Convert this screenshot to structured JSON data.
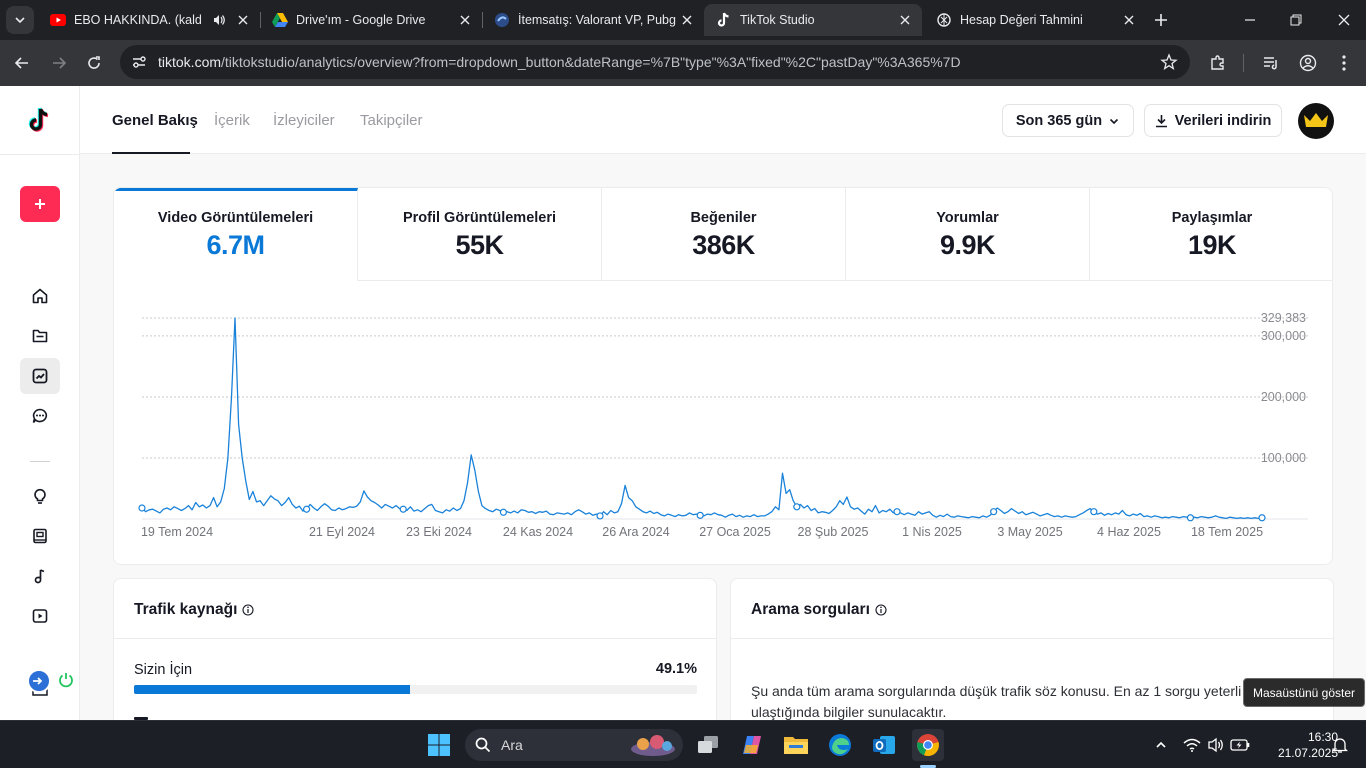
{
  "browser": {
    "tabs": [
      {
        "title": "EBO HAKKINDA. (kaldırıl",
        "favicon": "youtube-icon",
        "audio": true
      },
      {
        "title": "Drive'ım - Google Drive",
        "favicon": "google-drive-icon"
      },
      {
        "title": "İtemsatış: Valorant VP, Pubg",
        "favicon": "itemsatis-icon"
      },
      {
        "title": "TikTok Studio",
        "favicon": "tiktok-icon",
        "active": true
      },
      {
        "title": "Hesap Değeri Tahmini",
        "favicon": "chatgpt-icon"
      }
    ],
    "url_host": "tiktok.com",
    "url_path": "/tiktokstudio/analytics/overview?from=dropdown_button&dateRange=%7B\"type\"%3A\"fixed\"%2C\"pastDay\"%3A365%7D"
  },
  "nav": {
    "tabs": [
      "Genel Bakış",
      "İçerik",
      "İzleyiciler",
      "Takipçiler"
    ],
    "active_tab": "Genel Bakış",
    "range_label": "Son 365 gün",
    "download_label": "Verileri indirin"
  },
  "metrics": [
    {
      "label": "Video Görüntülemeleri",
      "value": "6.7M",
      "active": true
    },
    {
      "label": "Profil Görüntülemeleri",
      "value": "55K"
    },
    {
      "label": "Beğeniler",
      "value": "386K"
    },
    {
      "label": "Yorumlar",
      "value": "9.9K"
    },
    {
      "label": "Paylaşımlar",
      "value": "19K"
    }
  ],
  "colors": {
    "accent": "#0a78d6",
    "brand": "#fe2c55"
  },
  "chart_data": {
    "type": "line",
    "series": [
      {
        "values": [
          18000,
          12000,
          15000,
          16000,
          13000,
          10000,
          16000,
          18000,
          15000,
          20000,
          17000,
          14000,
          17000,
          22000,
          15000,
          27000,
          20000,
          23000,
          18000,
          22000,
          35000,
          20000,
          28000,
          50000,
          100000,
          200000,
          329383,
          155000,
          100000,
          62000,
          32000,
          45000,
          28000,
          30000,
          22000,
          30000,
          38000,
          33000,
          30000,
          22000,
          27000,
          35000,
          24000,
          18000,
          21000,
          13000,
          16000,
          24000,
          18000,
          14000,
          20000,
          25000,
          21000,
          15000,
          14000,
          18000,
          15000,
          17000,
          20000,
          19000,
          21000,
          28000,
          46000,
          36000,
          30000,
          27000,
          23000,
          18000,
          24000,
          21000,
          18000,
          22000,
          17000,
          16000,
          14000,
          20000,
          13000,
          15000,
          12000,
          17000,
          22000,
          24000,
          14000,
          12000,
          10000,
          15000,
          13000,
          18000,
          14000,
          17000,
          30000,
          60000,
          105000,
          80000,
          45000,
          22000,
          17000,
          14000,
          12000,
          16000,
          14000,
          11000,
          12000,
          10000,
          13000,
          10000,
          15000,
          14000,
          11000,
          12000,
          9000,
          12000,
          11000,
          13000,
          8000,
          7000,
          10000,
          9000,
          8000,
          10000,
          7000,
          12000,
          15000,
          12000,
          8000,
          10000,
          6000,
          8000,
          5000,
          12000,
          7000,
          14000,
          10000,
          12000,
          25000,
          55000,
          35000,
          30000,
          20000,
          16000,
          12000,
          10000,
          13000,
          9000,
          11000,
          7000,
          5000,
          8000,
          6000,
          4000,
          7000,
          5000,
          6000,
          10000,
          7000,
          8000,
          6000,
          5000,
          8000,
          7000,
          10000,
          7000,
          6000,
          3000,
          6000,
          8000,
          4000,
          6000,
          3000,
          5000,
          4000,
          7000,
          4000,
          5000,
          5000,
          8000,
          12000,
          20000,
          15000,
          75000,
          42000,
          48000,
          30000,
          20000,
          24000,
          18000,
          22000,
          14000,
          17000,
          10000,
          12000,
          11000,
          9000,
          14000,
          20000,
          30000,
          24000,
          36000,
          20000,
          16000,
          18000,
          13000,
          8000,
          16000,
          12000,
          22000,
          10000,
          14000,
          12000,
          16000,
          10000,
          12000,
          10000,
          7000,
          10000,
          8000,
          6000,
          12000,
          8000,
          10000,
          12000,
          6000,
          3000,
          6000,
          4000,
          8000,
          4000,
          3000,
          5000,
          4000,
          3000,
          2000,
          4000,
          3000,
          2000,
          5000,
          3000,
          6000,
          12000,
          18000,
          14000,
          9000,
          12000,
          17000,
          13000,
          9000,
          12000,
          7000,
          9000,
          11000,
          8000,
          5000,
          7000,
          9000,
          6000,
          4000,
          5000,
          3000,
          5000,
          4000,
          3000,
          4000,
          7000,
          10000,
          14000,
          17000,
          12000,
          8000,
          10000,
          6000,
          9000,
          7000,
          10000,
          8000,
          14000,
          7000,
          5000,
          8000,
          6000,
          9000,
          4000,
          5000,
          3000,
          5000,
          4000,
          2000,
          3000,
          2000,
          4000,
          3000,
          2000,
          4000,
          3000,
          2000,
          3000,
          2000,
          4000,
          3000,
          2000,
          3000,
          5000,
          3000,
          2000,
          1000,
          3000,
          2000,
          1000,
          2000,
          1000,
          2000,
          1000,
          2000,
          1000,
          2000
        ]
      }
    ],
    "xlabels": [
      "19 Tem 2024",
      "21 Eyl 2024",
      "23 Eki 2024",
      "24 Kas 2024",
      "26 Ara 2024",
      "27 Oca 2025",
      "28 Şub 2025",
      "1 Nis 2025",
      "3 May 2025",
      "4 Haz 2025",
      "18 Tem 2025"
    ],
    "yticks": [
      "329,383",
      "300,000",
      "200,000",
      "100,000"
    ],
    "ytick_values": [
      329383,
      300000,
      200000,
      100000
    ],
    "ylim": [
      0,
      329383
    ],
    "grid": true
  },
  "traffic": {
    "title": "Trafik kaynağı",
    "rows": [
      {
        "label": "Sizin İçin",
        "percent_label": "49.1%",
        "fraction": 0.491
      }
    ]
  },
  "search": {
    "title": "Arama sorguları",
    "message": "Şu anda tüm arama sorgularında düşük trafik söz konusu. En az 1 sorgu yeterli ulaştığında bilgiler sunulacaktır."
  },
  "tooltip": "Masaüstünü göster",
  "taskbar": {
    "search_placeholder": "Ara",
    "time": "16:30",
    "date": "21.07.2025"
  }
}
